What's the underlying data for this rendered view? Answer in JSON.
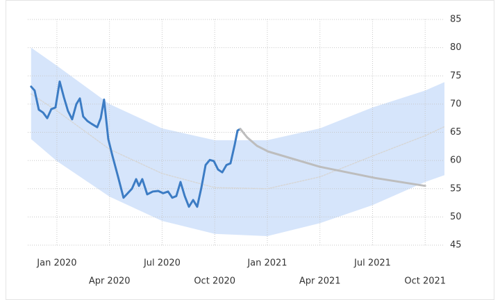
{
  "chart_data": {
    "type": "line",
    "xlim": [
      -1.66,
      22.1
    ],
    "xticks": [
      {
        "value": 0,
        "label": "Jan 2020"
      },
      {
        "value": 3,
        "label": "Apr 2020"
      },
      {
        "value": 6,
        "label": "Jul 2020"
      },
      {
        "value": 9,
        "label": "Oct 2020"
      },
      {
        "value": 12,
        "label": "Jan 2021"
      },
      {
        "value": 15,
        "label": "Apr 2021"
      },
      {
        "value": 18,
        "label": "Jul 2021"
      },
      {
        "value": 21,
        "label": "Oct 2021"
      }
    ],
    "ylim": [
      45,
      85
    ],
    "yticks": [
      45,
      50,
      55,
      60,
      65,
      70,
      75,
      80,
      85
    ],
    "grid": true,
    "band": {
      "color": "#cfe0fa",
      "x": [
        -1.47,
        0,
        3,
        6,
        9,
        12,
        15,
        18,
        21,
        22.1
      ],
      "upper": [
        80,
        76.8,
        70,
        65.7,
        63.6,
        63.6,
        65.7,
        69.4,
        72.4,
        73.9
      ],
      "lower": [
        63.8,
        59.9,
        53.6,
        49.3,
        47,
        46.6,
        48.9,
        52.1,
        56.2,
        57.4
      ]
    },
    "series": [
      {
        "color": "#d6d6d6",
        "style": "dotted",
        "x": [
          -1.47,
          0,
          3,
          6,
          9,
          12,
          15,
          18,
          21,
          22.1
        ],
        "values": [
          71.8,
          68.8,
          62,
          57.7,
          55.2,
          55,
          57.1,
          60.8,
          64.4,
          66
        ]
      },
      {
        "color": "#3c7cc4",
        "style": "solid",
        "x": [
          -1.47,
          -1.27,
          -1.03,
          -0.79,
          -0.55,
          -0.32,
          -0.08,
          0.16,
          0.4,
          0.63,
          0.87,
          1.11,
          1.31,
          1.5,
          1.74,
          1.98,
          2.3,
          2.5,
          2.69,
          2.93,
          3.17,
          3.49,
          3.8,
          4.04,
          4.28,
          4.52,
          4.68,
          4.87,
          5.15,
          5.47,
          5.78,
          6.06,
          6.34,
          6.58,
          6.81,
          7.05,
          7.29,
          7.53,
          7.77,
          8.0,
          8.24,
          8.48,
          8.72,
          8.95,
          9.19,
          9.43,
          9.67,
          9.9,
          10.14,
          10.3,
          10.46
        ],
        "values": [
          73.1,
          72.4,
          69,
          68.5,
          67.5,
          69.1,
          69.4,
          74,
          71.2,
          68.8,
          67.3,
          70,
          71,
          67.8,
          67,
          66.5,
          65.9,
          67.5,
          70.8,
          63.8,
          60.8,
          57.1,
          53.4,
          54.2,
          55,
          56.7,
          55.5,
          56.7,
          54,
          54.5,
          54.6,
          54.2,
          54.5,
          53.4,
          53.7,
          56.2,
          53.7,
          51.8,
          53,
          51.8,
          55.2,
          59.2,
          60.1,
          59.9,
          58.4,
          57.9,
          59.2,
          59.5,
          62.8,
          65.3,
          65.6
        ]
      },
      {
        "color": "#bdbdbd",
        "style": "solid",
        "x": [
          10.46,
          10.85,
          11.41,
          12.04,
          14.98,
          18.15,
          21
        ],
        "values": [
          65.6,
          64.1,
          62.6,
          61.6,
          58.9,
          56.9,
          55.5
        ]
      }
    ]
  }
}
